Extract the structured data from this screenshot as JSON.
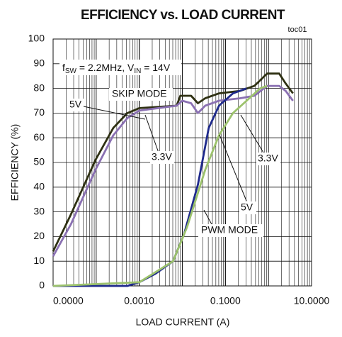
{
  "chart_data": {
    "type": "line",
    "title": "EFFICIENCY vs. LOAD CURRENT",
    "subtitle": "toc01",
    "x_label": "LOAD CURRENT (A)",
    "y_label": "EFFICIENCY (%)",
    "x_scale": "log",
    "xlim": [
      1e-05,
      10
    ],
    "xticks": [
      {
        "value": 1e-05,
        "label": "0.0000"
      },
      {
        "value": 0.001,
        "label": "0.0010"
      },
      {
        "value": 0.1,
        "label": "0.1000"
      },
      {
        "value": 10,
        "label": "10.0000"
      }
    ],
    "ylim": [
      0,
      100
    ],
    "yticks": [
      0,
      10,
      20,
      30,
      40,
      50,
      60,
      70,
      80,
      90,
      100
    ],
    "grid": true,
    "annotation": [
      "f",
      "SW",
      " = 2.2MHz, V",
      "IN",
      " = 14V"
    ],
    "labels": [
      "SKIP MODE",
      "5V",
      "3.3V",
      "3.3V",
      "5V",
      "PWM MODE"
    ],
    "series": [
      {
        "name": "5V SKIP MODE",
        "color": "#2e3012",
        "x": [
          1e-05,
          2.6e-05,
          9.6e-05,
          0.00025,
          0.00053,
          0.001,
          0.0074,
          0.009,
          0.016,
          0.023,
          0.034,
          0.071,
          0.22,
          0.47,
          0.93,
          1.77,
          2.5,
          3.7
        ],
        "values": [
          14,
          29,
          51,
          64,
          70,
          72,
          73,
          77,
          77,
          74,
          76,
          78,
          79,
          81,
          86,
          86,
          82,
          78
        ]
      },
      {
        "name": "3.3V SKIP MODE",
        "color": "#8a70b2",
        "x": [
          1e-05,
          2.6e-05,
          9.6e-05,
          0.00025,
          0.00053,
          0.001,
          0.0074,
          0.01,
          0.016,
          0.023,
          0.034,
          0.071,
          0.22,
          0.47,
          0.93,
          1.77,
          2.5,
          3.7
        ],
        "values": [
          12,
          25,
          47,
          61,
          68,
          71,
          73,
          75,
          74,
          70,
          73,
          75,
          76,
          77,
          81,
          81,
          79,
          75
        ]
      },
      {
        "name": "5V PWM MODE",
        "color": "#1f2a8c",
        "x": [
          1e-05,
          0.00053,
          0.001,
          0.0024,
          0.0061,
          0.011,
          0.023,
          0.041,
          0.071,
          0.15,
          0.31
        ],
        "values": [
          0,
          0,
          1.5,
          5,
          10,
          21,
          41,
          64,
          73,
          78,
          80
        ]
      },
      {
        "name": "3.3V PWM MODE",
        "color": "#9cc26c",
        "x": [
          1e-05,
          0.001,
          0.0061,
          0.013,
          0.034,
          0.071,
          0.15,
          0.31,
          0.64,
          0.93
        ],
        "values": [
          0,
          1.5,
          10,
          24,
          47,
          61,
          70,
          75,
          80,
          81
        ]
      }
    ]
  }
}
